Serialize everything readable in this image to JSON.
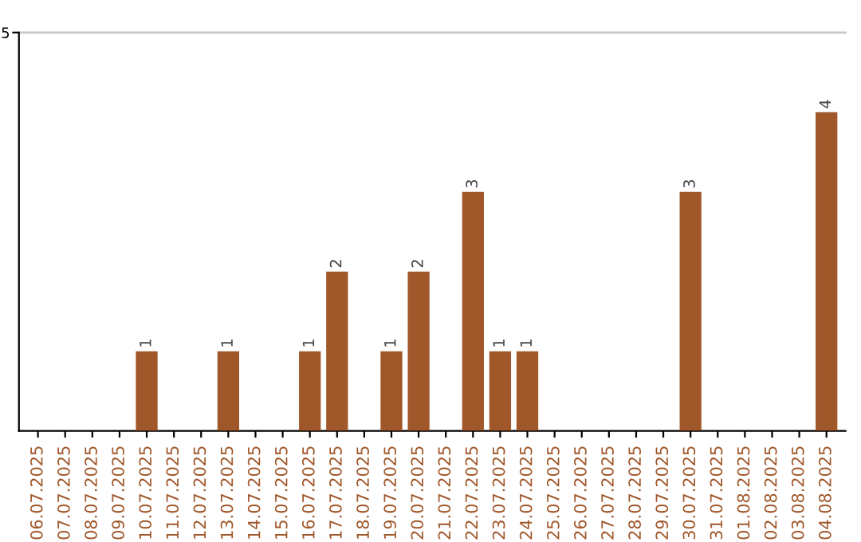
{
  "chart_data": {
    "type": "bar",
    "categories": [
      "06.07.2025",
      "07.07.2025",
      "08.07.2025",
      "09.07.2025",
      "10.07.2025",
      "11.07.2025",
      "12.07.2025",
      "13.07.2025",
      "14.07.2025",
      "15.07.2025",
      "16.07.2025",
      "17.07.2025",
      "18.07.2025",
      "19.07.2025",
      "20.07.2025",
      "21.07.2025",
      "22.07.2025",
      "23.07.2025",
      "24.07.2025",
      "25.07.2025",
      "26.07.2025",
      "27.07.2025",
      "28.07.2025",
      "29.07.2025",
      "30.07.2025",
      "31.07.2025",
      "01.08.2025",
      "02.08.2025",
      "03.08.2025",
      "04.08.2025"
    ],
    "values": [
      0,
      0,
      0,
      0,
      1,
      0,
      0,
      1,
      0,
      0,
      1,
      2,
      0,
      1,
      2,
      0,
      3,
      1,
      1,
      0,
      0,
      0,
      0,
      0,
      3,
      0,
      0,
      0,
      0,
      4
    ],
    "value_labels": [
      null,
      null,
      null,
      null,
      "1",
      null,
      null,
      "1",
      null,
      null,
      "1",
      "2",
      null,
      "1",
      "2",
      null,
      "3",
      "1",
      "1",
      null,
      null,
      null,
      null,
      null,
      "3",
      null,
      null,
      null,
      null,
      "4"
    ],
    "color": "#a0572a",
    "ylim": [
      0,
      5
    ],
    "yticks": [
      5
    ],
    "ref_lines": [
      {
        "axis": "y",
        "value": 5,
        "color": "#c8c8c8"
      }
    ]
  }
}
